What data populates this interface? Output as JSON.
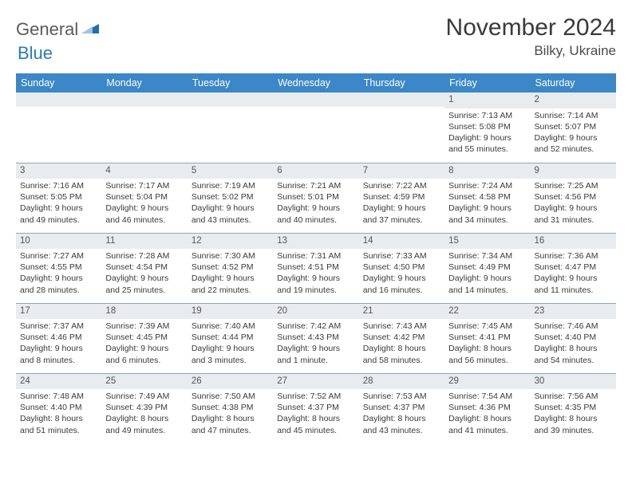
{
  "branding": {
    "word1": "General",
    "word2": "Blue",
    "icon_color": "#1f6fb0"
  },
  "header": {
    "title": "November 2024",
    "location": "Bilky, Ukraine"
  },
  "colors": {
    "header_bg": "#3b87c8",
    "header_fg": "#ffffff",
    "daynum_bg": "#e8ecef",
    "row_border": "#8aa6bd",
    "text": "#3a3a3a"
  },
  "day_headers": [
    "Sunday",
    "Monday",
    "Tuesday",
    "Wednesday",
    "Thursday",
    "Friday",
    "Saturday"
  ],
  "weeks": [
    [
      {
        "n": "",
        "sunrise": "",
        "sunset": "",
        "day": ""
      },
      {
        "n": "",
        "sunrise": "",
        "sunset": "",
        "day": ""
      },
      {
        "n": "",
        "sunrise": "",
        "sunset": "",
        "day": ""
      },
      {
        "n": "",
        "sunrise": "",
        "sunset": "",
        "day": ""
      },
      {
        "n": "",
        "sunrise": "",
        "sunset": "",
        "day": ""
      },
      {
        "n": "1",
        "sunrise": "Sunrise: 7:13 AM",
        "sunset": "Sunset: 5:08 PM",
        "day": "Daylight: 9 hours and 55 minutes."
      },
      {
        "n": "2",
        "sunrise": "Sunrise: 7:14 AM",
        "sunset": "Sunset: 5:07 PM",
        "day": "Daylight: 9 hours and 52 minutes."
      }
    ],
    [
      {
        "n": "3",
        "sunrise": "Sunrise: 7:16 AM",
        "sunset": "Sunset: 5:05 PM",
        "day": "Daylight: 9 hours and 49 minutes."
      },
      {
        "n": "4",
        "sunrise": "Sunrise: 7:17 AM",
        "sunset": "Sunset: 5:04 PM",
        "day": "Daylight: 9 hours and 46 minutes."
      },
      {
        "n": "5",
        "sunrise": "Sunrise: 7:19 AM",
        "sunset": "Sunset: 5:02 PM",
        "day": "Daylight: 9 hours and 43 minutes."
      },
      {
        "n": "6",
        "sunrise": "Sunrise: 7:21 AM",
        "sunset": "Sunset: 5:01 PM",
        "day": "Daylight: 9 hours and 40 minutes."
      },
      {
        "n": "7",
        "sunrise": "Sunrise: 7:22 AM",
        "sunset": "Sunset: 4:59 PM",
        "day": "Daylight: 9 hours and 37 minutes."
      },
      {
        "n": "8",
        "sunrise": "Sunrise: 7:24 AM",
        "sunset": "Sunset: 4:58 PM",
        "day": "Daylight: 9 hours and 34 minutes."
      },
      {
        "n": "9",
        "sunrise": "Sunrise: 7:25 AM",
        "sunset": "Sunset: 4:56 PM",
        "day": "Daylight: 9 hours and 31 minutes."
      }
    ],
    [
      {
        "n": "10",
        "sunrise": "Sunrise: 7:27 AM",
        "sunset": "Sunset: 4:55 PM",
        "day": "Daylight: 9 hours and 28 minutes."
      },
      {
        "n": "11",
        "sunrise": "Sunrise: 7:28 AM",
        "sunset": "Sunset: 4:54 PM",
        "day": "Daylight: 9 hours and 25 minutes."
      },
      {
        "n": "12",
        "sunrise": "Sunrise: 7:30 AM",
        "sunset": "Sunset: 4:52 PM",
        "day": "Daylight: 9 hours and 22 minutes."
      },
      {
        "n": "13",
        "sunrise": "Sunrise: 7:31 AM",
        "sunset": "Sunset: 4:51 PM",
        "day": "Daylight: 9 hours and 19 minutes."
      },
      {
        "n": "14",
        "sunrise": "Sunrise: 7:33 AM",
        "sunset": "Sunset: 4:50 PM",
        "day": "Daylight: 9 hours and 16 minutes."
      },
      {
        "n": "15",
        "sunrise": "Sunrise: 7:34 AM",
        "sunset": "Sunset: 4:49 PM",
        "day": "Daylight: 9 hours and 14 minutes."
      },
      {
        "n": "16",
        "sunrise": "Sunrise: 7:36 AM",
        "sunset": "Sunset: 4:47 PM",
        "day": "Daylight: 9 hours and 11 minutes."
      }
    ],
    [
      {
        "n": "17",
        "sunrise": "Sunrise: 7:37 AM",
        "sunset": "Sunset: 4:46 PM",
        "day": "Daylight: 9 hours and 8 minutes."
      },
      {
        "n": "18",
        "sunrise": "Sunrise: 7:39 AM",
        "sunset": "Sunset: 4:45 PM",
        "day": "Daylight: 9 hours and 6 minutes."
      },
      {
        "n": "19",
        "sunrise": "Sunrise: 7:40 AM",
        "sunset": "Sunset: 4:44 PM",
        "day": "Daylight: 9 hours and 3 minutes."
      },
      {
        "n": "20",
        "sunrise": "Sunrise: 7:42 AM",
        "sunset": "Sunset: 4:43 PM",
        "day": "Daylight: 9 hours and 1 minute."
      },
      {
        "n": "21",
        "sunrise": "Sunrise: 7:43 AM",
        "sunset": "Sunset: 4:42 PM",
        "day": "Daylight: 8 hours and 58 minutes."
      },
      {
        "n": "22",
        "sunrise": "Sunrise: 7:45 AM",
        "sunset": "Sunset: 4:41 PM",
        "day": "Daylight: 8 hours and 56 minutes."
      },
      {
        "n": "23",
        "sunrise": "Sunrise: 7:46 AM",
        "sunset": "Sunset: 4:40 PM",
        "day": "Daylight: 8 hours and 54 minutes."
      }
    ],
    [
      {
        "n": "24",
        "sunrise": "Sunrise: 7:48 AM",
        "sunset": "Sunset: 4:40 PM",
        "day": "Daylight: 8 hours and 51 minutes."
      },
      {
        "n": "25",
        "sunrise": "Sunrise: 7:49 AM",
        "sunset": "Sunset: 4:39 PM",
        "day": "Daylight: 8 hours and 49 minutes."
      },
      {
        "n": "26",
        "sunrise": "Sunrise: 7:50 AM",
        "sunset": "Sunset: 4:38 PM",
        "day": "Daylight: 8 hours and 47 minutes."
      },
      {
        "n": "27",
        "sunrise": "Sunrise: 7:52 AM",
        "sunset": "Sunset: 4:37 PM",
        "day": "Daylight: 8 hours and 45 minutes."
      },
      {
        "n": "28",
        "sunrise": "Sunrise: 7:53 AM",
        "sunset": "Sunset: 4:37 PM",
        "day": "Daylight: 8 hours and 43 minutes."
      },
      {
        "n": "29",
        "sunrise": "Sunrise: 7:54 AM",
        "sunset": "Sunset: 4:36 PM",
        "day": "Daylight: 8 hours and 41 minutes."
      },
      {
        "n": "30",
        "sunrise": "Sunrise: 7:56 AM",
        "sunset": "Sunset: 4:35 PM",
        "day": "Daylight: 8 hours and 39 minutes."
      }
    ]
  ]
}
